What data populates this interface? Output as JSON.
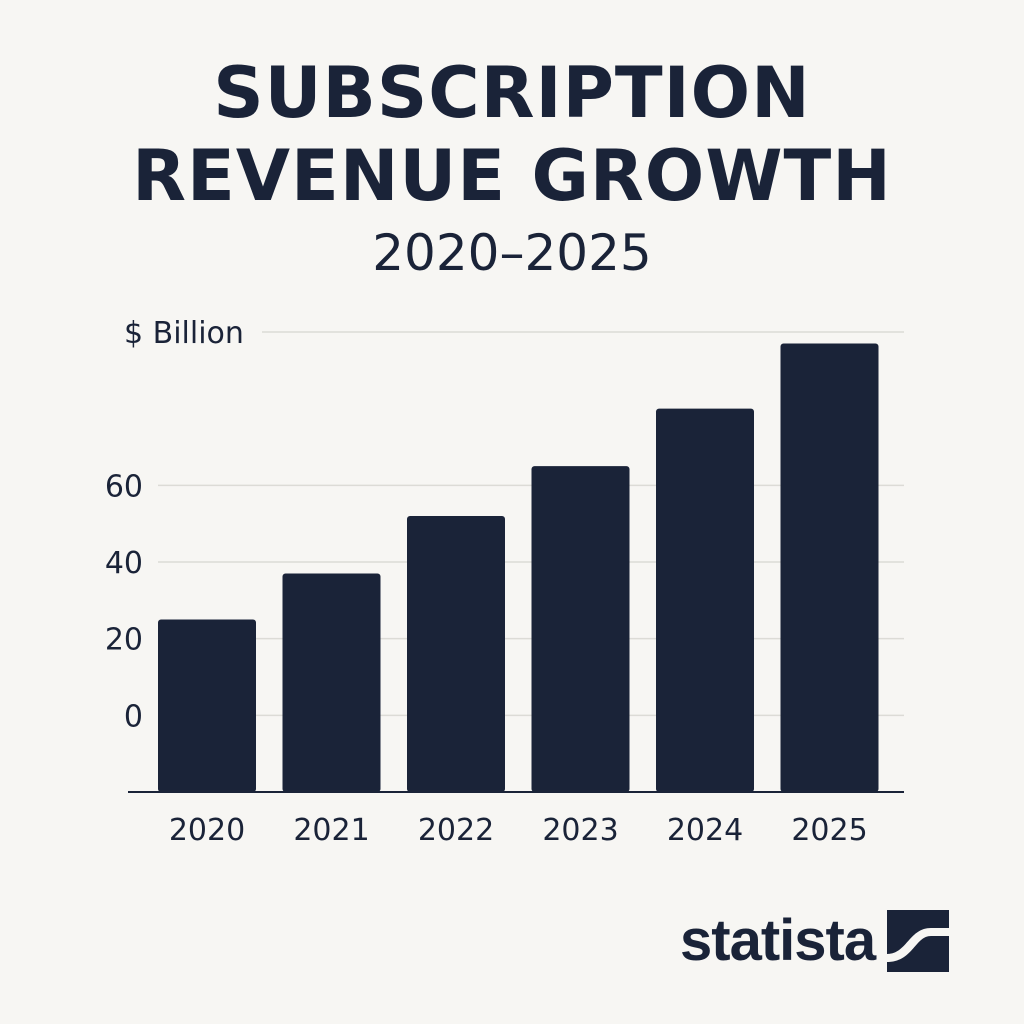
{
  "header": {
    "title_line1": "SUBSCRIPTION",
    "title_line2": "REVENUE GROWTH",
    "subtitle": "2020–2025"
  },
  "brand": {
    "name": "statista"
  },
  "colors": {
    "bar": "#1a2338",
    "grid": "#dcdbd6",
    "axis": "#1a2338",
    "text": "#1a2338",
    "background": "#f7f6f3"
  },
  "chart_data": {
    "type": "bar",
    "title": "SUBSCRIPTION REVENUE GROWTH",
    "subtitle": "2020–2025",
    "ylabel": "$ Billion",
    "xlabel": "",
    "categories": [
      "2020",
      "2021",
      "2022",
      "2023",
      "2024",
      "2025"
    ],
    "values": [
      25,
      37,
      52,
      65,
      80,
      97
    ],
    "ylim": [
      -20,
      100
    ],
    "yticks": [
      0,
      20,
      40,
      60
    ],
    "ytick_labels": [
      "0",
      "20",
      "40",
      "60"
    ],
    "grid": true,
    "legend": "none"
  }
}
